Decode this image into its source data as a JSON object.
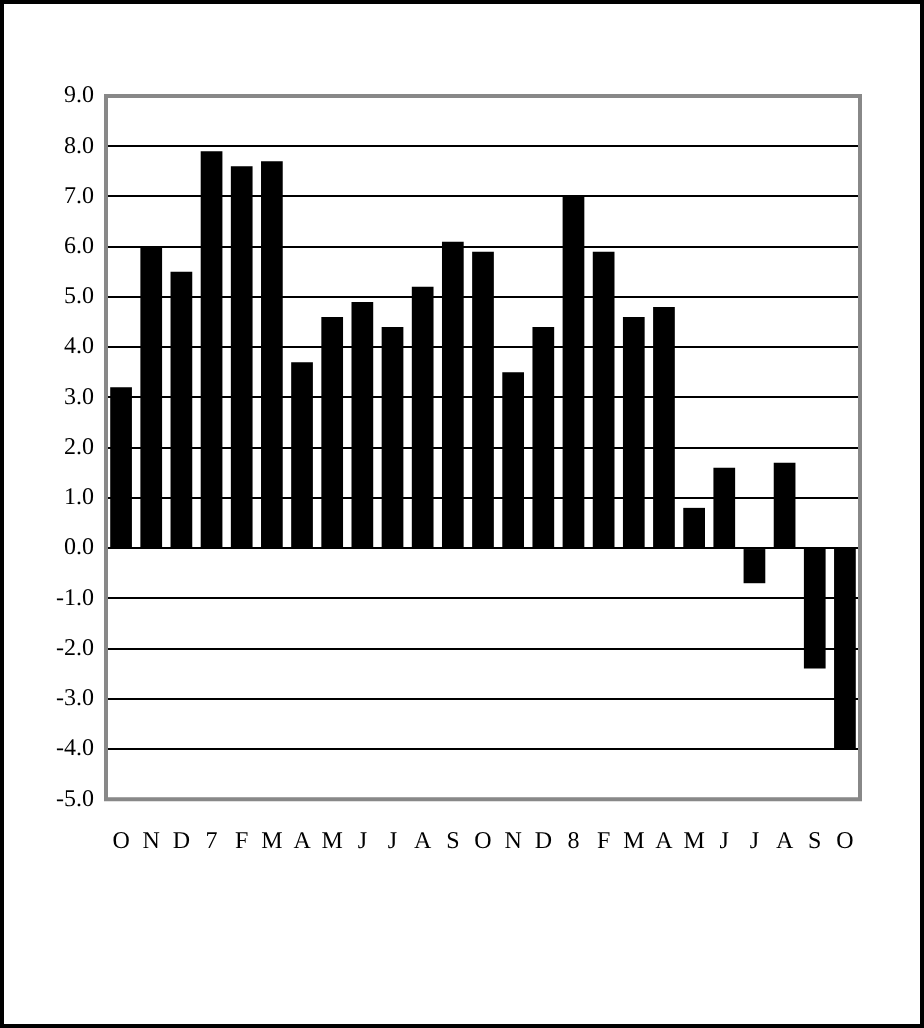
{
  "chart_data": {
    "type": "bar",
    "categories": [
      "O",
      "N",
      "D",
      "7",
      "F",
      "M",
      "A",
      "M",
      "J",
      "J",
      "A",
      "S",
      "O",
      "N",
      "D",
      "8",
      "F",
      "M",
      "A",
      "M",
      "J",
      "J",
      "A",
      "S",
      "O"
    ],
    "values": [
      3.2,
      6.0,
      5.5,
      7.9,
      7.6,
      7.7,
      3.7,
      4.6,
      4.9,
      4.4,
      5.2,
      6.1,
      5.9,
      3.5,
      4.4,
      7.0,
      5.9,
      4.6,
      4.8,
      0.8,
      1.6,
      -0.7,
      1.7,
      -2.4,
      -4.0
    ],
    "color": "#000000",
    "ylim": [
      -5,
      9
    ],
    "yticks": [
      {
        "value": -5,
        "label": "-5.0"
      },
      {
        "value": -4,
        "label": "-4.0"
      },
      {
        "value": -3,
        "label": "-3.0"
      },
      {
        "value": -2,
        "label": "-2.0"
      },
      {
        "value": -1,
        "label": "-1.0"
      },
      {
        "value": 0,
        "label": "0.0"
      },
      {
        "value": 1,
        "label": "1.0"
      },
      {
        "value": 2,
        "label": "2.0"
      },
      {
        "value": 3,
        "label": "3.0"
      },
      {
        "value": 4,
        "label": "4.0"
      },
      {
        "value": 5,
        "label": "5.0"
      },
      {
        "value": 6,
        "label": "6.0"
      },
      {
        "value": 7,
        "label": "7.0"
      },
      {
        "value": 8,
        "label": "8.0"
      },
      {
        "value": 9,
        "label": "9.0"
      }
    ],
    "grid": "y",
    "legend": false
  }
}
